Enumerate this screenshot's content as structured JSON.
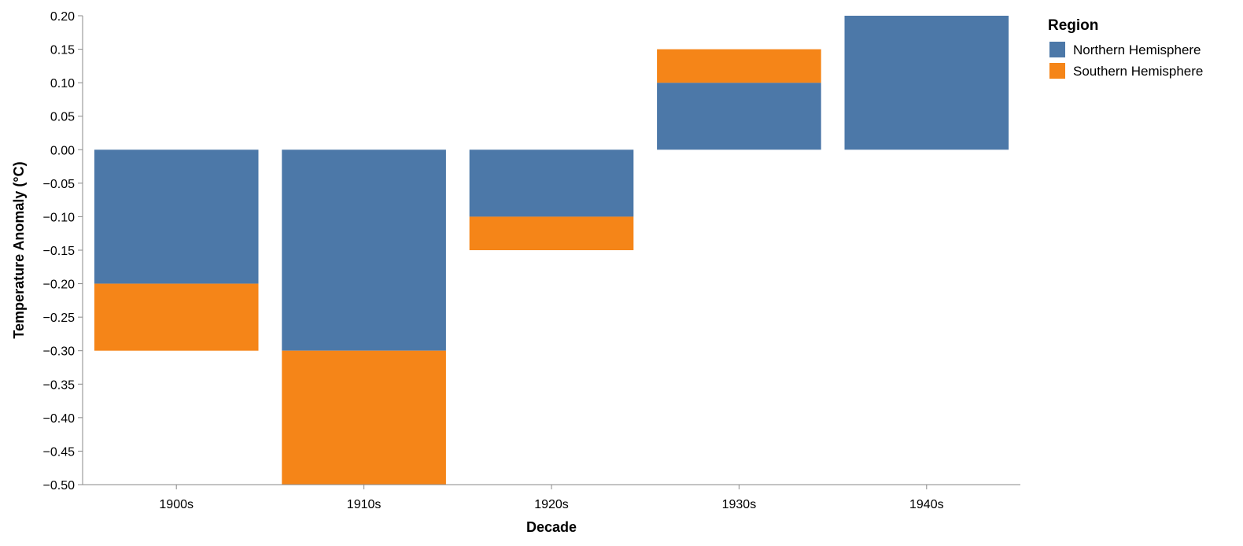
{
  "chart_data": {
    "type": "bar",
    "stacked": true,
    "categories": [
      "1900s",
      "1910s",
      "1920s",
      "1930s",
      "1940s"
    ],
    "series": [
      {
        "name": "Northern Hemisphere",
        "color": "#4c78a8",
        "values": [
          -0.2,
          -0.3,
          -0.1,
          0.1,
          0.2
        ]
      },
      {
        "name": "Southern Hemisphere",
        "color": "#f58518",
        "values": [
          -0.1,
          -0.2,
          -0.05,
          0.05,
          0
        ]
      }
    ],
    "title": "",
    "xlabel": "Decade",
    "ylabel": "Temperature Anomaly (°C)",
    "ylim": [
      -0.5,
      0.2
    ],
    "yticks": [
      "0.20",
      "0.15",
      "0.10",
      "0.05",
      "0.00",
      "−0.05",
      "−0.10",
      "−0.15",
      "−0.20",
      "−0.25",
      "−0.30",
      "−0.35",
      "−0.40",
      "−0.45",
      "−0.50"
    ],
    "grid": false,
    "legend": {
      "title": "Region",
      "position": "top-right"
    }
  }
}
